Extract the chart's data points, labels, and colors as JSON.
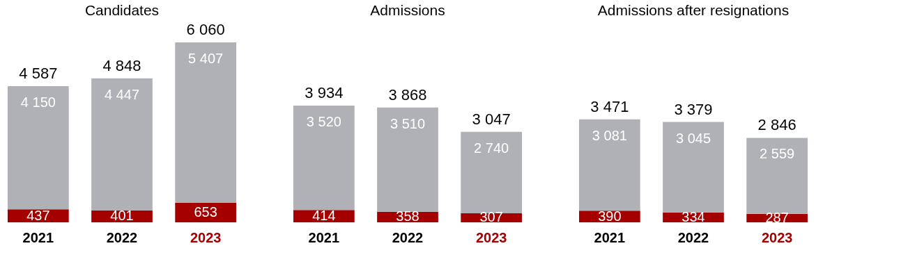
{
  "chart_data": [
    {
      "type": "bar",
      "stacked": true,
      "title": "Candidates",
      "categories": [
        "2021",
        "2022",
        "2023"
      ],
      "data_labels": true,
      "totals": [
        "4 587",
        "4 848",
        "6 060"
      ],
      "series": [
        {
          "color": "#a50000",
          "values": [
            437,
            401,
            653
          ]
        },
        {
          "color": "#b0b1b6",
          "values": [
            4150,
            4447,
            5407
          ]
        }
      ]
    },
    {
      "type": "bar",
      "stacked": true,
      "title": "Admissions",
      "categories": [
        "2021",
        "2022",
        "2023"
      ],
      "data_labels": true,
      "totals": [
        "3 934",
        "3 868",
        "3 047"
      ],
      "series": [
        {
          "color": "#a50000",
          "values": [
            414,
            358,
            307
          ]
        },
        {
          "color": "#b0b1b6",
          "values": [
            3520,
            3510,
            2740
          ]
        }
      ]
    },
    {
      "type": "bar",
      "stacked": true,
      "title": "Admissions after resignations",
      "categories": [
        "2021",
        "2022",
        "2023"
      ],
      "data_labels": true,
      "totals": [
        "3 471",
        "3 379",
        "2 846"
      ],
      "series": [
        {
          "color": "#a50000",
          "values": [
            390,
            334,
            287
          ]
        },
        {
          "color": "#b0b1b6",
          "values": [
            3081,
            3045,
            2559
          ]
        }
      ]
    }
  ]
}
